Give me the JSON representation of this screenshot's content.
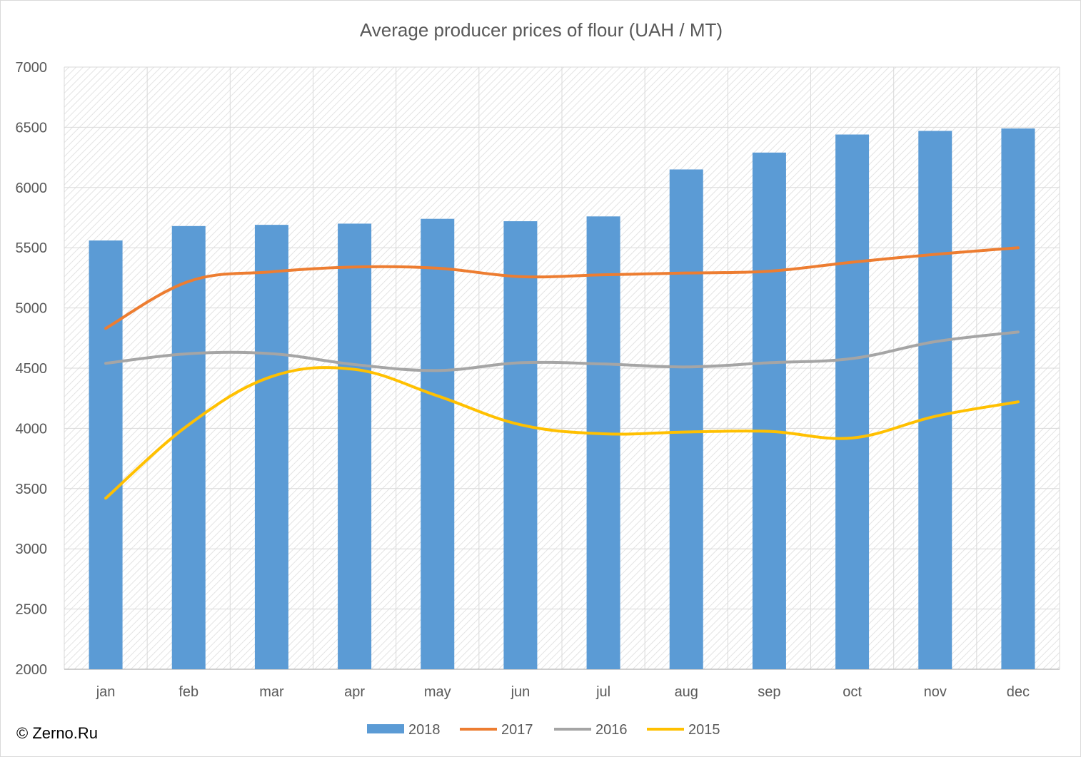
{
  "chart_data": {
    "type": "bar",
    "title": "Average producer prices of flour (UAH / MT)",
    "categories": [
      "jan",
      "feb",
      "mar",
      "apr",
      "may",
      "jun",
      "jul",
      "aug",
      "sep",
      "oct",
      "nov",
      "dec"
    ],
    "ylim": [
      2000,
      7000
    ],
    "yticks": [
      "2000",
      "2500",
      "3000",
      "3500",
      "4000",
      "4500",
      "5000",
      "5500",
      "6000",
      "6500",
      "7000"
    ],
    "grid": true,
    "legend_position": "bottom",
    "series": [
      {
        "name": "2018",
        "type": "bar",
        "color": "#5b9bd5",
        "values": [
          5560,
          5680,
          5690,
          5700,
          5740,
          5720,
          5760,
          6150,
          6290,
          6440,
          6470,
          6490
        ]
      },
      {
        "name": "2017",
        "type": "line",
        "color": "#ed7d31",
        "values": [
          4830,
          5220,
          5300,
          5340,
          5330,
          5260,
          5275,
          5290,
          5305,
          5380,
          5445,
          5500
        ]
      },
      {
        "name": "2016",
        "type": "line",
        "color": "#a5a5a5",
        "values": [
          4540,
          4620,
          4620,
          4530,
          4480,
          4545,
          4535,
          4510,
          4545,
          4580,
          4720,
          4800
        ]
      },
      {
        "name": "2015",
        "type": "line",
        "color": "#ffc000",
        "values": [
          3420,
          4030,
          4430,
          4490,
          4270,
          4030,
          3955,
          3970,
          3975,
          3920,
          4100,
          4220
        ]
      }
    ]
  },
  "copyright": "© Zerno.Ru"
}
